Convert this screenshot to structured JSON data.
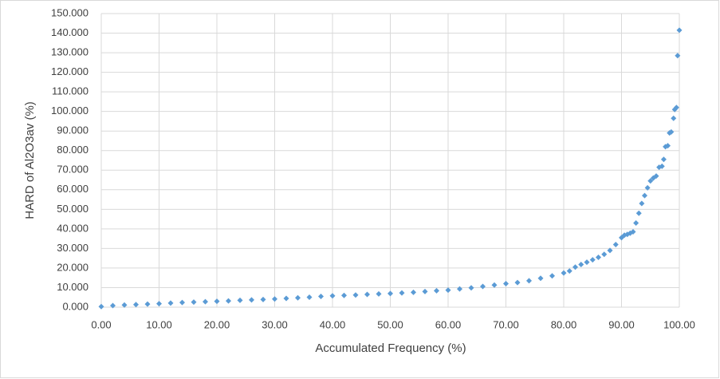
{
  "chart_data": {
    "type": "scatter",
    "x_label": "Accumulated Frequency (%)",
    "y_label": "HARD of Al2O3av (%)",
    "color": "#5b9bd5",
    "grid": true,
    "xlim": [
      0,
      100
    ],
    "ylim": [
      0,
      150
    ],
    "xticks": [
      {
        "value": 0,
        "label": "0.00"
      },
      {
        "value": 10,
        "label": "10.00"
      },
      {
        "value": 20,
        "label": "20.00"
      },
      {
        "value": 30,
        "label": "30.00"
      },
      {
        "value": 40,
        "label": "40.00"
      },
      {
        "value": 50,
        "label": "50.00"
      },
      {
        "value": 60,
        "label": "60.00"
      },
      {
        "value": 70,
        "label": "70.00"
      },
      {
        "value": 80,
        "label": "80.00"
      },
      {
        "value": 90,
        "label": "90.00"
      },
      {
        "value": 100,
        "label": "100.00"
      }
    ],
    "yticks": [
      {
        "value": 0,
        "label": "0.000"
      },
      {
        "value": 10,
        "label": "10.000"
      },
      {
        "value": 20,
        "label": "20.000"
      },
      {
        "value": 30,
        "label": "30.000"
      },
      {
        "value": 40,
        "label": "40.000"
      },
      {
        "value": 50,
        "label": "50.000"
      },
      {
        "value": 60,
        "label": "60.000"
      },
      {
        "value": 70,
        "label": "70.000"
      },
      {
        "value": 80,
        "label": "80.000"
      },
      {
        "value": 90,
        "label": "90.000"
      },
      {
        "value": 100,
        "label": "100.000"
      },
      {
        "value": 110,
        "label": "110.000"
      },
      {
        "value": 120,
        "label": "120.000"
      },
      {
        "value": 130,
        "label": "130.000"
      },
      {
        "value": 140,
        "label": "140.000"
      },
      {
        "value": 150,
        "label": "150.000"
      }
    ],
    "x": [
      0,
      2,
      4,
      6,
      8,
      10,
      12,
      14,
      16,
      18,
      20,
      22,
      24,
      26,
      28,
      30,
      32,
      34,
      36,
      38,
      40,
      42,
      44,
      46,
      48,
      50,
      52,
      54,
      56,
      58,
      60,
      62,
      64,
      66,
      68,
      70,
      72,
      74,
      76,
      78,
      80,
      81,
      82,
      83,
      84,
      85,
      86,
      87,
      88,
      89,
      90,
      90.5,
      91,
      91.5,
      92,
      92.5,
      93,
      93.5,
      94,
      94.5,
      95,
      95.5,
      96,
      96.5,
      97,
      97.3,
      97.6,
      98,
      98.3,
      98.6,
      99,
      99.2,
      99.5,
      99.7,
      100
    ],
    "values": [
      0.3,
      0.8,
      1.1,
      1.3,
      1.6,
      1.8,
      2.1,
      2.4,
      2.6,
      2.8,
      3.0,
      3.2,
      3.5,
      3.7,
      3.9,
      4.2,
      4.5,
      4.8,
      5.1,
      5.5,
      5.8,
      6.0,
      6.2,
      6.5,
      6.8,
      7.0,
      7.3,
      7.6,
      8.0,
      8.4,
      8.7,
      9.3,
      9.9,
      10.6,
      11.3,
      12.0,
      12.6,
      13.5,
      14.8,
      16.0,
      17.5,
      18.5,
      20.5,
      21.8,
      23.0,
      24.2,
      25.5,
      27.0,
      29.0,
      32.0,
      35.5,
      36.8,
      37.2,
      37.8,
      38.5,
      43,
      48,
      53,
      57,
      61,
      64.5,
      66,
      67,
      71.5,
      72,
      75.5,
      82,
      82.5,
      89,
      89.5,
      96.5,
      101,
      102,
      128.5,
      141.5
    ]
  }
}
